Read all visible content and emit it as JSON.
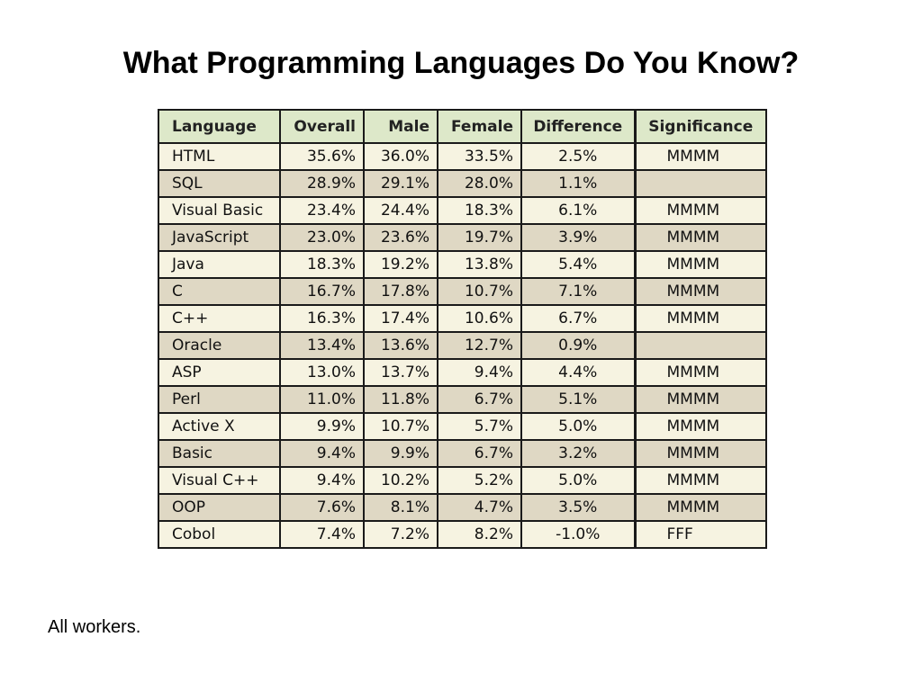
{
  "title": "What Programming Languages Do You Know?",
  "table": {
    "headers": [
      "Language",
      "Overall",
      "Male",
      "Female",
      "Difference",
      "Significance"
    ],
    "rows": [
      [
        "HTML",
        "35.6%",
        "36.0%",
        "33.5%",
        "2.5%",
        "MMMM"
      ],
      [
        "SQL",
        "28.9%",
        "29.1%",
        "28.0%",
        "1.1%",
        ""
      ],
      [
        "Visual Basic",
        "23.4%",
        "24.4%",
        "18.3%",
        "6.1%",
        "MMMM"
      ],
      [
        "JavaScript",
        "23.0%",
        "23.6%",
        "19.7%",
        "3.9%",
        "MMMM"
      ],
      [
        "Java",
        "18.3%",
        "19.2%",
        "13.8%",
        "5.4%",
        "MMMM"
      ],
      [
        "C",
        "16.7%",
        "17.8%",
        "10.7%",
        "7.1%",
        "MMMM"
      ],
      [
        "C++",
        "16.3%",
        "17.4%",
        "10.6%",
        "6.7%",
        "MMMM"
      ],
      [
        "Oracle",
        "13.4%",
        "13.6%",
        "12.7%",
        "0.9%",
        ""
      ],
      [
        "ASP",
        "13.0%",
        "13.7%",
        "9.4%",
        "4.4%",
        "MMMM"
      ],
      [
        "Perl",
        "11.0%",
        "11.8%",
        "6.7%",
        "5.1%",
        "MMMM"
      ],
      [
        "Active X",
        "9.9%",
        "10.7%",
        "5.7%",
        "5.0%",
        "MMMM"
      ],
      [
        "Basic",
        "9.4%",
        "9.9%",
        "6.7%",
        "3.2%",
        "MMMM"
      ],
      [
        "Visual C++",
        "9.4%",
        "10.2%",
        "5.2%",
        "5.0%",
        "MMMM"
      ],
      [
        "OOP",
        "7.6%",
        "8.1%",
        "4.7%",
        "3.5%",
        "MMMM"
      ],
      [
        "Cobol",
        "7.4%",
        "7.2%",
        "8.2%",
        "-1.0%",
        "FFF"
      ]
    ]
  },
  "footnote": "All workers.",
  "colors": {
    "header_bg": "#dde8c9",
    "row_light": "#f6f3e1",
    "row_dark": "#dfd8c4",
    "border": "#1a1a1a"
  }
}
